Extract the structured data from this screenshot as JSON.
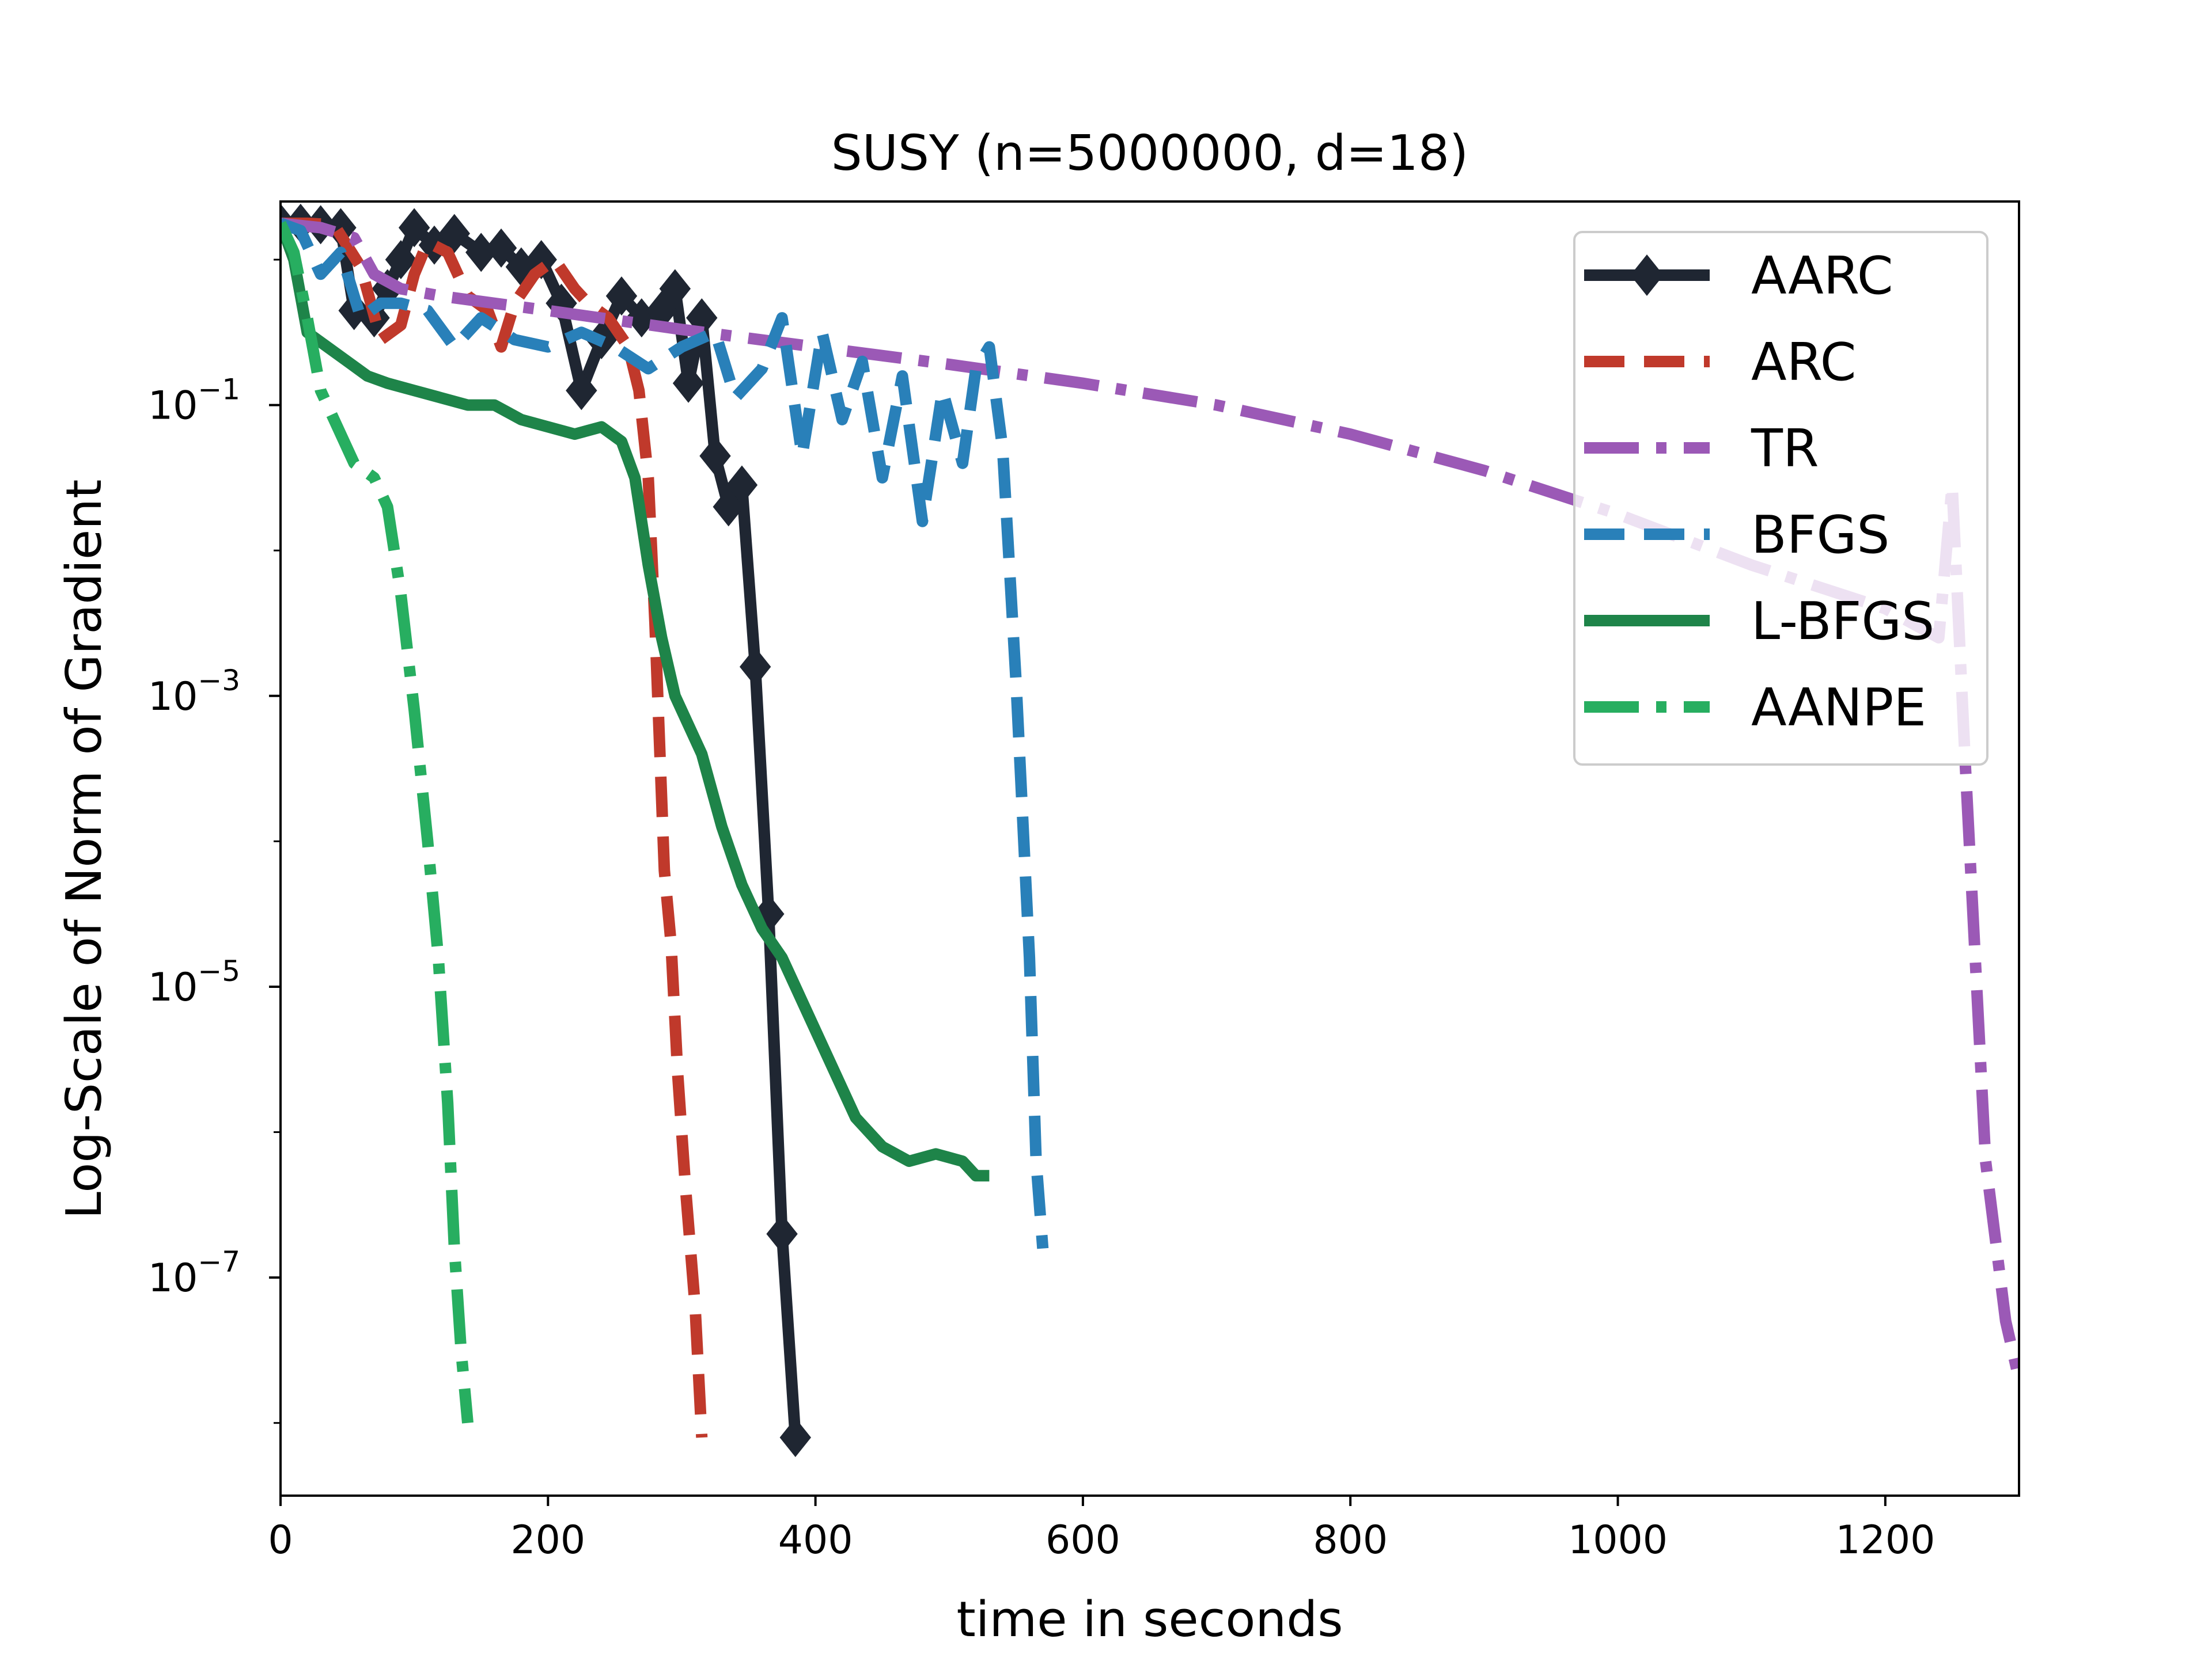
{
  "chart_data": {
    "type": "line",
    "title": "SUSY (n=5000000, d=18)",
    "xlabel": "time in seconds",
    "ylabel": "Log-Scale of Norm of Gradient",
    "yscale": "log",
    "xlim": [
      0,
      1300
    ],
    "ylim_log10": [
      -8.5,
      0.4
    ],
    "xticks": [
      {
        "value": 0,
        "label": "0"
      },
      {
        "value": 200,
        "label": "200"
      },
      {
        "value": 400,
        "label": "400"
      },
      {
        "value": 600,
        "label": "600"
      },
      {
        "value": 800,
        "label": "800"
      },
      {
        "value": 1000,
        "label": "1000"
      },
      {
        "value": 1200,
        "label": "1200"
      }
    ],
    "yticks": [
      {
        "exp": -1,
        "base": "10",
        "power": "−1"
      },
      {
        "exp": -3,
        "base": "10",
        "power": "−3"
      },
      {
        "exp": -5,
        "base": "10",
        "power": "−5"
      },
      {
        "exp": -7,
        "base": "10",
        "power": "−7"
      }
    ],
    "legend_position": "top-right",
    "series": [
      {
        "name": "AARC",
        "color": "#1f2632",
        "style": "solid",
        "marker": "diamond",
        "x": [
          0,
          15,
          30,
          45,
          55,
          70,
          80,
          90,
          100,
          115,
          130,
          150,
          165,
          180,
          195,
          210,
          225,
          240,
          255,
          270,
          285,
          295,
          305,
          315,
          325,
          335,
          345,
          355,
          365,
          375,
          385
        ],
        "log10_y": [
          0.25,
          0.25,
          0.24,
          0.22,
          -0.35,
          -0.4,
          -0.2,
          0.0,
          0.22,
          0.1,
          0.18,
          0.05,
          0.08,
          -0.05,
          0.0,
          -0.3,
          -0.9,
          -0.55,
          -0.25,
          -0.4,
          -0.35,
          -0.2,
          -0.85,
          -0.4,
          -1.35,
          -1.7,
          -1.55,
          -2.8,
          -4.5,
          -6.7,
          -8.1
        ]
      },
      {
        "name": "ARC",
        "color": "#c0392b",
        "style": "dashed",
        "marker": "none",
        "x": [
          0,
          20,
          40,
          60,
          75,
          90,
          100,
          110,
          125,
          140,
          155,
          165,
          175,
          190,
          205,
          220,
          230,
          245,
          260,
          268,
          275,
          280,
          287,
          292,
          297,
          303,
          310,
          315
        ],
        "log10_y": [
          0.25,
          0.25,
          0.24,
          -0.05,
          -0.55,
          -0.45,
          -0.1,
          0.12,
          0.05,
          -0.25,
          -0.35,
          -0.6,
          -0.3,
          -0.1,
          0.0,
          -0.2,
          -0.3,
          -0.4,
          -0.6,
          -0.9,
          -1.5,
          -2.5,
          -4.2,
          -4.7,
          -5.6,
          -6.4,
          -7.2,
          -8.1
        ]
      },
      {
        "name": "TR",
        "color": "#9b59b6",
        "style": "dashdot",
        "marker": "none",
        "x": [
          0,
          30,
          55,
          70,
          90,
          120,
          200,
          300,
          400,
          500,
          600,
          700,
          800,
          900,
          1000,
          1100,
          1200,
          1240,
          1250,
          1260,
          1275,
          1290,
          1300
        ],
        "log10_y": [
          0.25,
          0.22,
          0.15,
          -0.1,
          -0.2,
          -0.25,
          -0.35,
          -0.48,
          -0.6,
          -0.72,
          -0.85,
          -1.0,
          -1.2,
          -1.45,
          -1.75,
          -2.1,
          -2.4,
          -2.6,
          -1.55,
          -3.5,
          -6.2,
          -7.3,
          -7.7
        ]
      },
      {
        "name": "BFGS",
        "color": "#2980b9",
        "style": "dashed",
        "marker": "none",
        "x": [
          0,
          15,
          30,
          45,
          60,
          75,
          90,
          110,
          130,
          150,
          175,
          200,
          225,
          250,
          275,
          300,
          325,
          340,
          360,
          375,
          390,
          405,
          420,
          435,
          450,
          465,
          480,
          495,
          510,
          520,
          530,
          540,
          550,
          560,
          565,
          570
        ],
        "log10_y": [
          0.25,
          0.2,
          -0.1,
          0.05,
          -0.4,
          -0.3,
          -0.3,
          -0.35,
          -0.6,
          -0.4,
          -0.55,
          -0.6,
          -0.5,
          -0.6,
          -0.75,
          -0.6,
          -0.5,
          -0.95,
          -0.75,
          -0.4,
          -1.35,
          -0.5,
          -1.1,
          -0.7,
          -1.5,
          -0.8,
          -1.8,
          -0.9,
          -1.4,
          -0.75,
          -0.6,
          -1.3,
          -2.9,
          -4.8,
          -6.2,
          -6.8
        ]
      },
      {
        "name": "L-BFGS",
        "color": "#1e8449",
        "style": "solid",
        "marker": "none",
        "x": [
          0,
          10,
          20,
          35,
          50,
          65,
          80,
          100,
          120,
          140,
          160,
          180,
          200,
          220,
          240,
          255,
          265,
          275,
          285,
          295,
          305,
          315,
          330,
          345,
          360,
          375,
          390,
          410,
          430,
          450,
          470,
          490,
          510,
          520,
          530
        ],
        "log10_y": [
          0.25,
          0.0,
          -0.5,
          -0.6,
          -0.7,
          -0.8,
          -0.85,
          -0.9,
          -0.95,
          -1.0,
          -1.0,
          -1.1,
          -1.15,
          -1.2,
          -1.15,
          -1.25,
          -1.5,
          -2.1,
          -2.6,
          -3.0,
          -3.2,
          -3.4,
          -3.9,
          -4.3,
          -4.6,
          -4.8,
          -5.1,
          -5.5,
          -5.9,
          -6.1,
          -6.2,
          -6.15,
          -6.2,
          -6.3,
          -6.3
        ]
      },
      {
        "name": "AANPE",
        "color": "#27ae60",
        "style": "dashdot",
        "marker": "none",
        "x": [
          0,
          10,
          20,
          30,
          40,
          55,
          70,
          80,
          90,
          100,
          110,
          118,
          125,
          130,
          135,
          140
        ],
        "log10_y": [
          0.25,
          0.05,
          -0.4,
          -0.9,
          -1.1,
          -1.4,
          -1.5,
          -1.7,
          -2.3,
          -3.1,
          -4.0,
          -4.8,
          -5.8,
          -6.8,
          -7.5,
          -8.0
        ]
      }
    ]
  }
}
